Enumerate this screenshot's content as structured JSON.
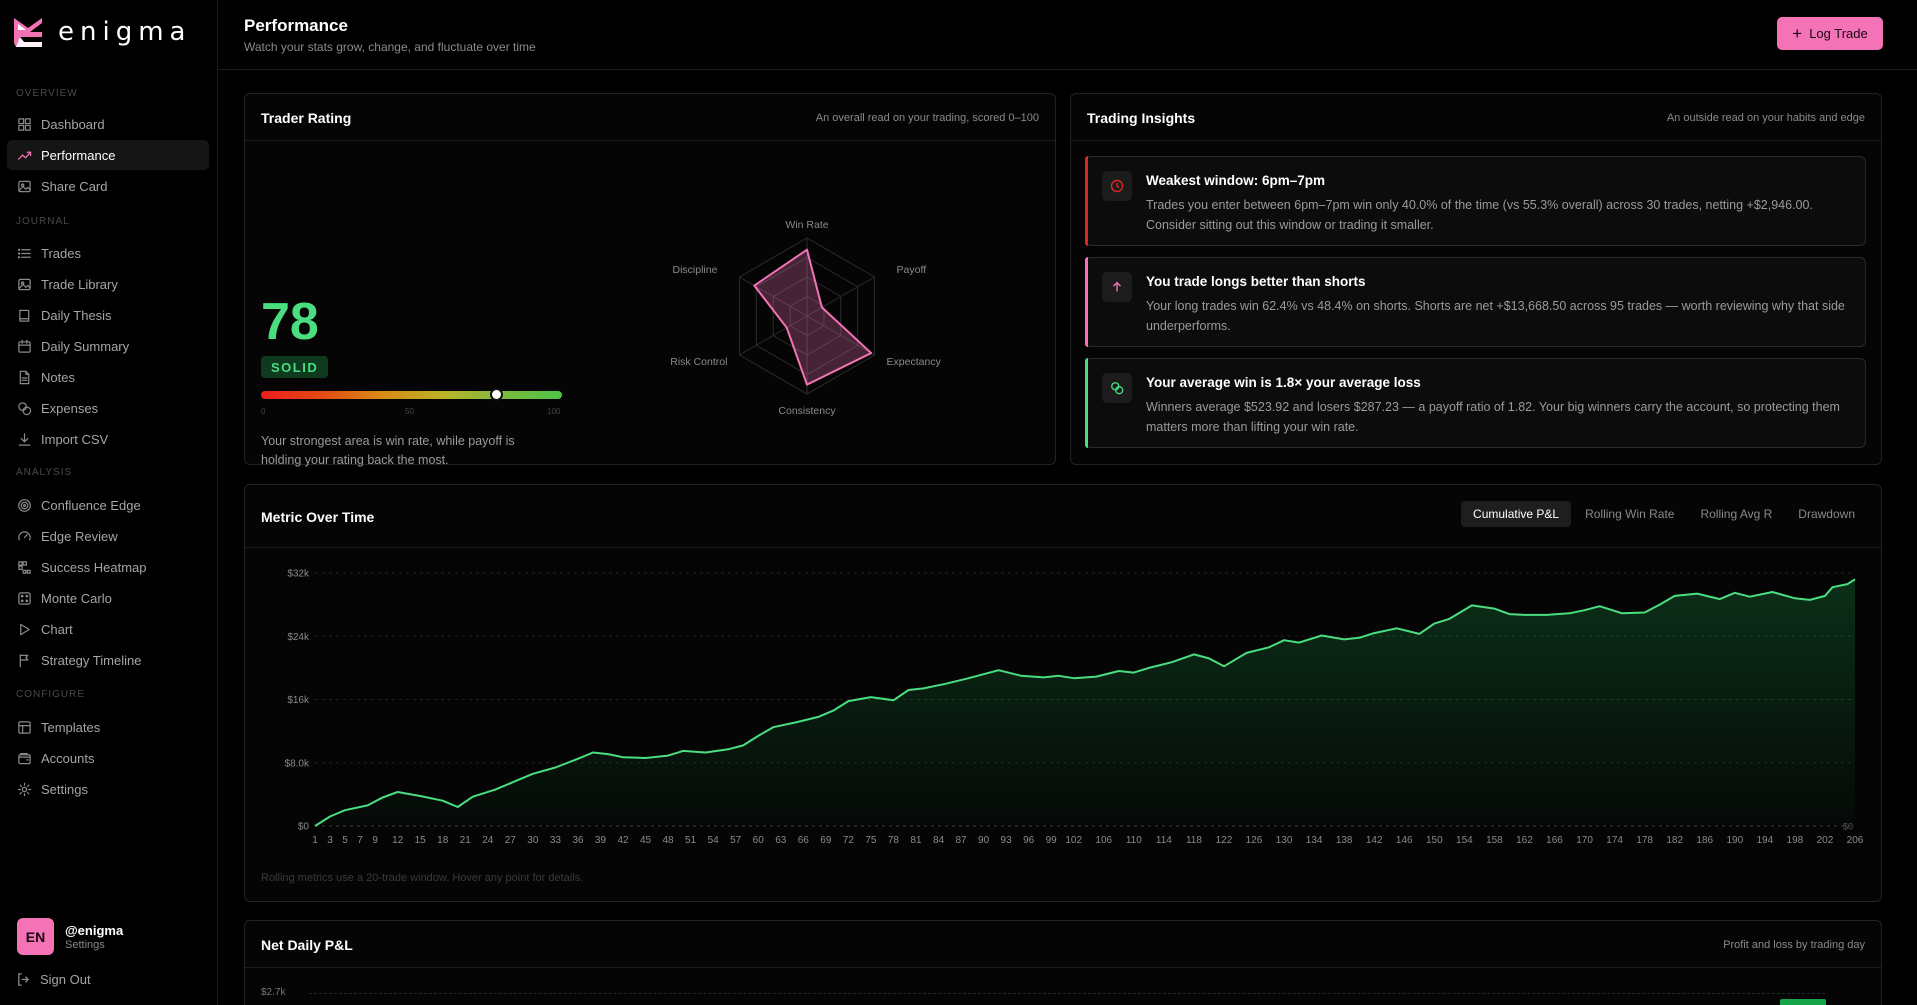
{
  "brand": {
    "name": "enigma"
  },
  "nav": {
    "sections": {
      "overview": "OVERVIEW",
      "journal": "JOURNAL",
      "analysis": "ANALYSIS",
      "configure": "CONFIGURE"
    },
    "items": [
      {
        "label": "Dashboard",
        "icon": "grid-icon"
      },
      {
        "label": "Performance",
        "icon": "trend-icon",
        "active": true
      },
      {
        "label": "Share Card",
        "icon": "image-icon"
      },
      {
        "label": "Trades",
        "icon": "list-icon"
      },
      {
        "label": "Trade Library",
        "icon": "image-icon"
      },
      {
        "label": "Daily Thesis",
        "icon": "book-icon"
      },
      {
        "label": "Daily Summary",
        "icon": "calendar-icon"
      },
      {
        "label": "Notes",
        "icon": "note-icon"
      },
      {
        "label": "Expenses",
        "icon": "coins-icon"
      },
      {
        "label": "Import CSV",
        "icon": "download-icon"
      },
      {
        "label": "Confluence Edge",
        "icon": "target-icon"
      },
      {
        "label": "Edge Review",
        "icon": "gauge-icon"
      },
      {
        "label": "Success Heatmap",
        "icon": "heatmap-icon"
      },
      {
        "label": "Monte Carlo",
        "icon": "dice-icon"
      },
      {
        "label": "Chart",
        "icon": "play-icon"
      },
      {
        "label": "Strategy Timeline",
        "icon": "flag-icon"
      },
      {
        "label": "Templates",
        "icon": "layout-icon"
      },
      {
        "label": "Accounts",
        "icon": "wallet-icon"
      },
      {
        "label": "Settings",
        "icon": "gear-icon"
      }
    ]
  },
  "user": {
    "initials": "EN",
    "handle": "@enigma",
    "sub": "Settings",
    "signout": "Sign Out"
  },
  "header": {
    "title": "Performance",
    "subtitle": "Watch your stats grow, change, and fluctuate over time",
    "log_trade": "Log Trade"
  },
  "rating": {
    "title": "Trader Rating",
    "subtitle": "An overall read on your trading, scored 0–100",
    "score": "78",
    "grade": "SOLID",
    "gauge_value": 78,
    "gauge_ticks": [
      "0",
      "50",
      "100"
    ],
    "text": "Your strongest area is win rate, while payoff is holding your rating back the most.",
    "radar": {
      "axes": [
        "Win Rate",
        "Payoff",
        "Expectancy",
        "Consistency",
        "Risk Control",
        "Discipline"
      ],
      "values": [
        85,
        22,
        95,
        88,
        30,
        78
      ],
      "max": 100
    }
  },
  "insights": {
    "title": "Trading Insights",
    "subtitle": "An outside read on your habits and edge",
    "items": [
      {
        "title": "Weakest window: 6pm–7pm",
        "text": "Trades you enter between 6pm–7pm win only 40.0% of the time (vs 55.3% overall) across 30 trades, netting +$2,946.00. Consider sitting out this window or trading it smaller.",
        "color": "#dc2626",
        "icon": "clock-icon"
      },
      {
        "title": "You trade longs better than shorts",
        "text": "Your long trades win 62.4% vs 48.4% on shorts. Shorts are net +$13,668.50 across 95 trades — worth reviewing why that side underperforms.",
        "color": "#f472b6",
        "icon": "arrow-up-icon"
      },
      {
        "title": "Your average win is 1.8× your average loss",
        "text": "Winners average $523.92 and losers $287.23 — a payoff ratio of 1.82. Your big winners carry the account, so protecting them matters more than lifting your win rate.",
        "color": "#4ade80",
        "icon": "coins-icon"
      }
    ]
  },
  "metric": {
    "title": "Metric Over Time",
    "tabs": [
      "Cumulative P&L",
      "Rolling Win Rate",
      "Rolling Avg R",
      "Drawdown"
    ],
    "active_tab": 0,
    "footnote": "Rolling metrics use a 20-trade window. Hover any point for details.",
    "zero_label": "$0",
    "line_color": "#4ade80"
  },
  "chart_data": {
    "type": "area",
    "y_ticks": [
      "$0",
      "$8.0k",
      "$16k",
      "$24k",
      "$32k"
    ],
    "ylim": [
      0,
      32000
    ],
    "x_ticks": [
      "1",
      "3",
      "5",
      "7",
      "9",
      "12",
      "15",
      "18",
      "21",
      "24",
      "27",
      "30",
      "33",
      "36",
      "39",
      "42",
      "45",
      "48",
      "51",
      "54",
      "57",
      "60",
      "63",
      "66",
      "69",
      "72",
      "75",
      "78",
      "81",
      "84",
      "87",
      "90",
      "93",
      "96",
      "99",
      "102",
      "106",
      "110",
      "114",
      "118",
      "122",
      "126",
      "130",
      "134",
      "138",
      "142",
      "146",
      "150",
      "154",
      "158",
      "162",
      "166",
      "170",
      "174",
      "178",
      "182",
      "186",
      "190",
      "194",
      "198",
      "202",
      "206"
    ],
    "xlim": [
      1,
      206
    ],
    "x": [
      1,
      3,
      5,
      8,
      10,
      12,
      15,
      18,
      20,
      22,
      25,
      28,
      30,
      33,
      36,
      38,
      40,
      42,
      45,
      48,
      50,
      53,
      56,
      58,
      60,
      62,
      65,
      68,
      70,
      72,
      75,
      78,
      80,
      82,
      85,
      88,
      90,
      92,
      95,
      98,
      100,
      102,
      105,
      108,
      110,
      112,
      115,
      118,
      120,
      122,
      125,
      128,
      130,
      132,
      135,
      138,
      140,
      142,
      145,
      148,
      150,
      152,
      155,
      158,
      160,
      162,
      165,
      168,
      170,
      172,
      175,
      178,
      180,
      182,
      185,
      188,
      190,
      192,
      195,
      198,
      200,
      202,
      203,
      205,
      206
    ],
    "y": [
      0,
      1200,
      2000,
      2600,
      3600,
      4300,
      3800,
      3200,
      2400,
      3700,
      4600,
      5800,
      6600,
      7400,
      8500,
      9300,
      9100,
      8700,
      8600,
      8900,
      9500,
      9300,
      9700,
      10200,
      11400,
      12500,
      13100,
      13800,
      14600,
      15800,
      16300,
      15900,
      17200,
      17400,
      18000,
      18700,
      19200,
      19700,
      19000,
      18800,
      19000,
      18700,
      18900,
      19600,
      19400,
      20000,
      20700,
      21700,
      21200,
      20200,
      21900,
      22600,
      23500,
      23200,
      24100,
      23600,
      23800,
      24400,
      25000,
      24300,
      25600,
      26200,
      27900,
      27500,
      26800,
      26700,
      26700,
      26900,
      27300,
      27800,
      26900,
      27000,
      28000,
      29100,
      29400,
      28700,
      29500,
      29000,
      29600,
      28800,
      28600,
      29100,
      30200,
      30600,
      31200
    ]
  },
  "daily": {
    "title": "Net Daily P&L",
    "subtitle": "Profit and loss by trading day",
    "top_tick": "$2.7k"
  }
}
